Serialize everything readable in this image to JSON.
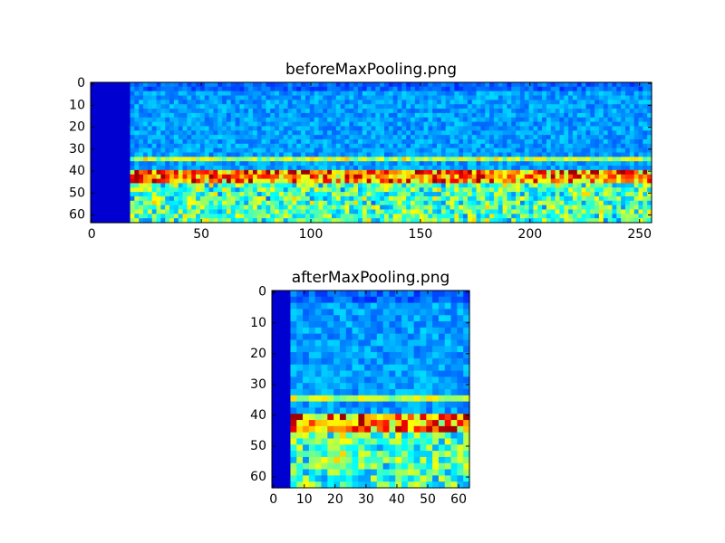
{
  "chart_data": [
    {
      "type": "image",
      "title": "beforeMaxPooling.png",
      "xlim": [
        -0.5,
        255.5
      ],
      "ylim": [
        63.5,
        -0.5
      ],
      "xticks": [
        0,
        50,
        100,
        150,
        200,
        250
      ],
      "yticks": [
        0,
        10,
        20,
        30,
        40,
        50,
        60
      ]
    },
    {
      "type": "image",
      "title": "afterMaxPooling.png",
      "xlim": [
        -0.5,
        63.5
      ],
      "ylim": [
        63.5,
        -0.5
      ],
      "xticks": [
        0,
        10,
        20,
        30,
        40,
        50,
        60
      ],
      "yticks": [
        0,
        10,
        20,
        30,
        40,
        50,
        60
      ]
    }
  ]
}
